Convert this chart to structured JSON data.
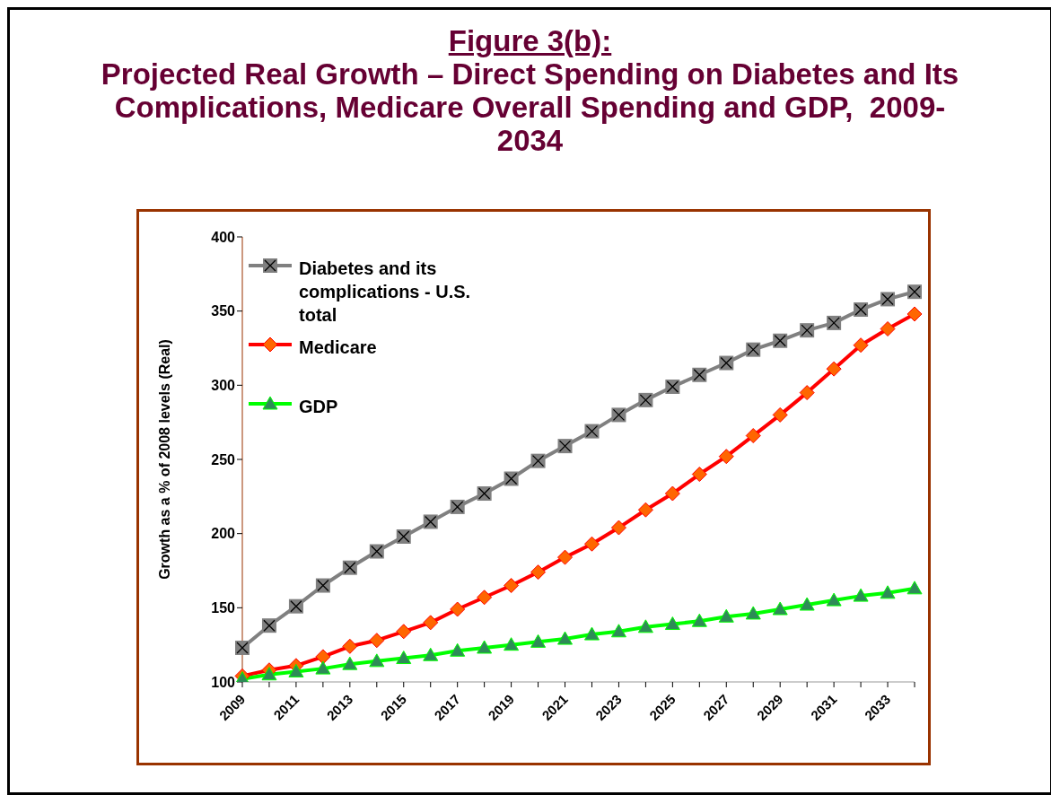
{
  "chart_data": {
    "type": "line",
    "title": "Figure 3(b):",
    "subtitle": "Projected Real Growth – Direct Spending on Diabetes and Its Complications, Medicare Overall Spending and GDP,  2009-2034",
    "ylabel": "Growth as a % of 2008 levels (Real)",
    "categories": [
      "2009",
      null,
      "2011",
      null,
      "2013",
      null,
      "2015",
      null,
      "2017",
      null,
      "2019",
      null,
      "2021",
      null,
      "2023",
      null,
      "2025",
      null,
      "2027",
      null,
      "2029",
      null,
      "2031",
      null,
      "2033",
      null
    ],
    "series": [
      {
        "name": "Diabetes and its complications - U.S. total",
        "color": "#808080",
        "marker": "square",
        "values": [
          123,
          138,
          151,
          165,
          177,
          188,
          198,
          208,
          218,
          227,
          237,
          249,
          259,
          269,
          280,
          290,
          299,
          307,
          315,
          324,
          330,
          337,
          342,
          351,
          358,
          363
        ]
      },
      {
        "name": "Medicare",
        "color": "#ff0000",
        "marker": "diamond",
        "values": [
          104,
          108,
          111,
          117,
          124,
          128,
          134,
          140,
          149,
          157,
          165,
          174,
          184,
          193,
          204,
          216,
          227,
          240,
          252,
          266,
          280,
          295,
          311,
          327,
          338,
          348
        ]
      },
      {
        "name": "GDP",
        "color": "#00ff00",
        "marker": "triangle",
        "values": [
          102,
          105,
          107,
          109,
          112,
          114,
          116,
          118,
          121,
          123,
          125,
          127,
          129,
          132,
          134,
          137,
          139,
          141,
          144,
          146,
          149,
          152,
          155,
          158,
          160,
          163
        ]
      }
    ],
    "ylim": [
      100,
      400
    ],
    "yticks": [
      100,
      150,
      200,
      250,
      300,
      350,
      400
    ],
    "grid": false,
    "legend": "top left"
  }
}
